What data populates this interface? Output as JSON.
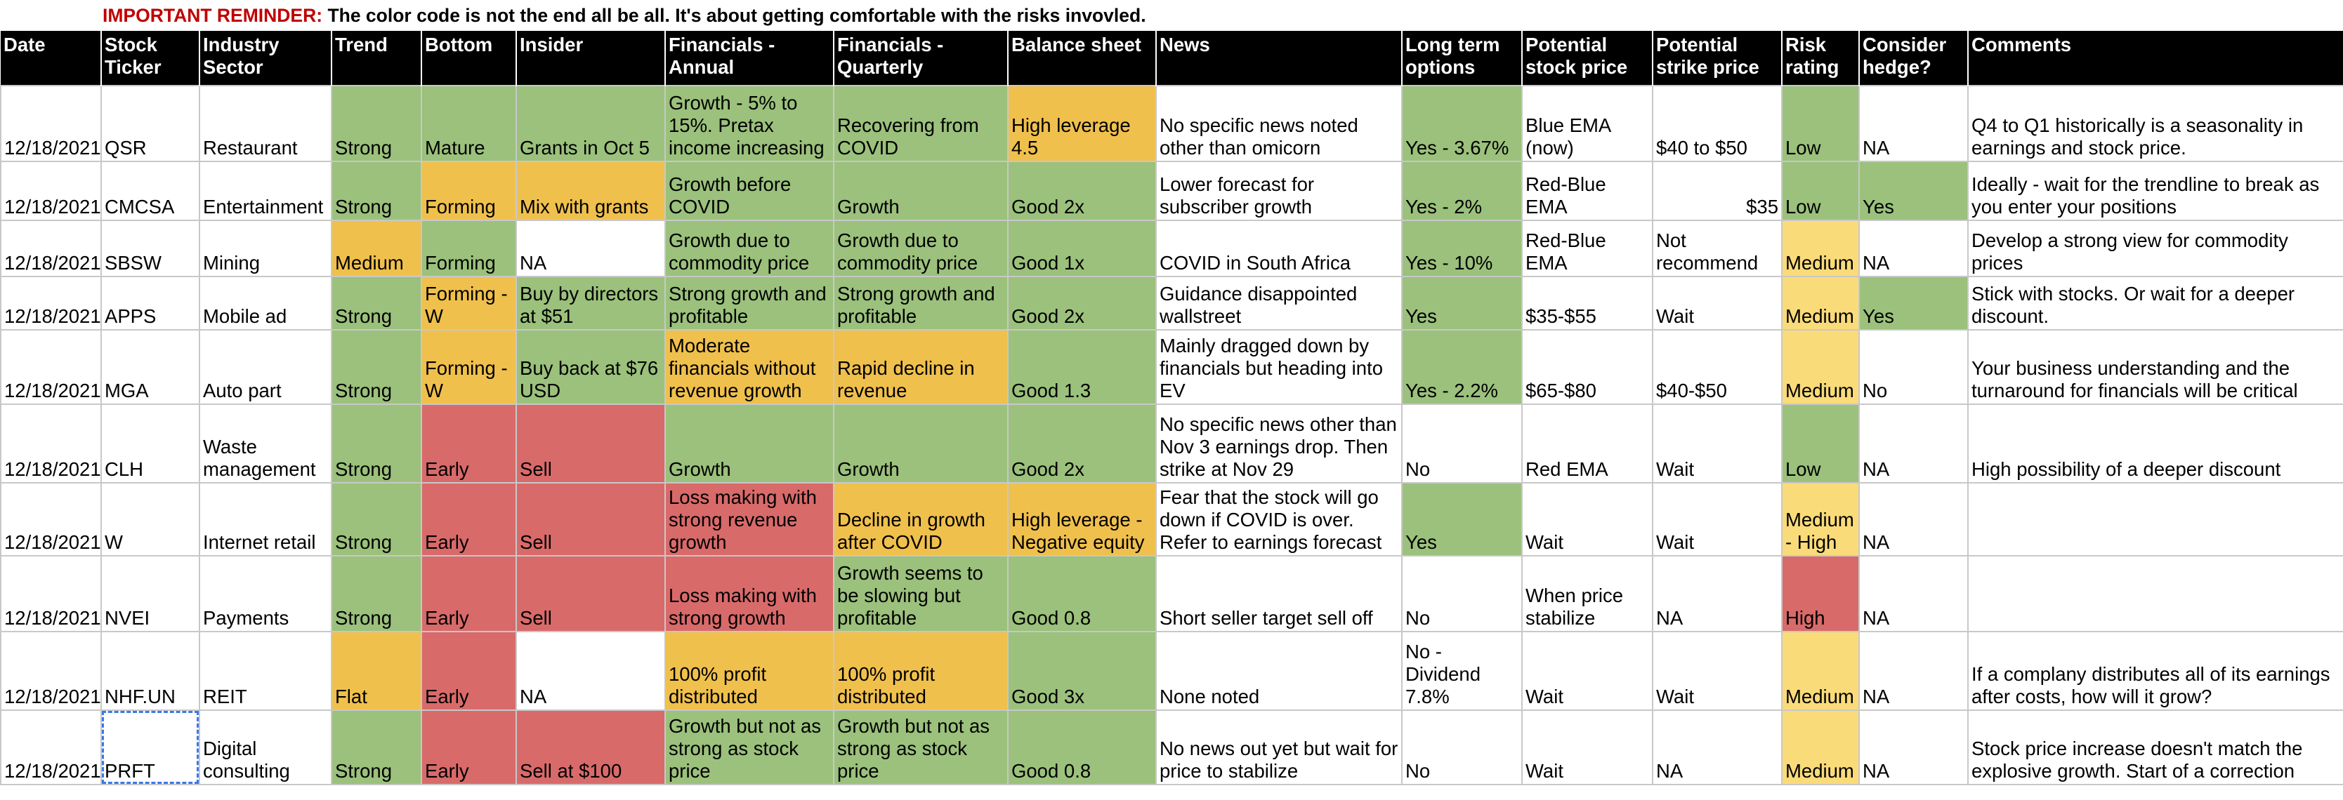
{
  "reminder": {
    "label": "IMPORTANT REMINDER:",
    "text": "The color code is not the end all be all. It's about getting comfortable with the risks invovled."
  },
  "colors": {
    "green": "#9bc17c",
    "yellow": "#f0c04d",
    "red": "#d96a6a",
    "light_yellow": "#fadb7a",
    "header": "#000000",
    "reminder_label": "#c00000"
  },
  "headers": [
    "Date",
    "Stock Ticker",
    "Industry Sector",
    "Trend",
    "Bottom",
    "Insider",
    "Financials - Annual",
    "Financials - Quarterly",
    "Balance sheet",
    "News",
    "Long term options",
    "Potential stock price",
    "Potential strike price",
    "Risk rating",
    "Consider hedge?",
    "Comments"
  ],
  "rows": [
    [
      "12/18/2021",
      "QSR",
      "Restaurant",
      "Strong",
      "Mature",
      "Grants in Oct 5",
      "Growth - 5% to 15%. Pretax income increasing",
      "Recovering from COVID",
      "High leverage 4.5",
      "No specific news noted other than omicorn",
      "Yes - 3.67%",
      "Blue EMA (now)",
      "$40 to $50",
      "Low",
      "NA",
      "Q4 to Q1 historically is a seasonality in earnings and stock price."
    ],
    [
      "12/18/2021",
      "CMCSA",
      "Entertainment",
      "Strong",
      "Forming",
      "Mix with grants",
      "Growth before COVID",
      "Growth",
      "Good 2x",
      "Lower forecast for subscriber growth",
      "Yes - 2%",
      "Red-Blue EMA",
      "$35",
      "Low",
      "Yes",
      "Ideally - wait for the trendline to break as you enter your positions"
    ],
    [
      "12/18/2021",
      "SBSW",
      "Mining",
      "Medium",
      "Forming",
      "NA",
      "Growth due to commodity price",
      "Growth due to commodity price",
      "Good 1x",
      "COVID in South Africa",
      "Yes - 10%",
      "Red-Blue EMA",
      "Not recommend",
      "Medium",
      "NA",
      "Develop a strong view for commodity prices"
    ],
    [
      "12/18/2021",
      "APPS",
      "Mobile ad",
      "Strong",
      "Forming - W",
      "Buy by directors at $51",
      "Strong growth and profitable",
      "Strong growth and profitable",
      "Good 2x",
      "Guidance disappointed wallstreet",
      "Yes",
      "$35-$55",
      "Wait",
      "Medium",
      "Yes",
      "Stick with stocks. Or wait for a deeper discount."
    ],
    [
      "12/18/2021",
      "MGA",
      "Auto part",
      "Strong",
      "Forming - W",
      "Buy back at $76 USD",
      "Moderate financials without revenue growth",
      "Rapid decline in revenue",
      "Good 1.3",
      "Mainly dragged down by financials but heading into EV",
      "Yes - 2.2%",
      "$65-$80",
      "$40-$50",
      "Medium",
      "No",
      "Your business understanding and the turnaround for financials will be critical"
    ],
    [
      "12/18/2021",
      "CLH",
      "Waste management",
      "Strong",
      "Early",
      "Sell",
      "Growth",
      "Growth",
      "Good 2x",
      "No specific news other than Nov 3 earnings drop. Then strike at Nov 29",
      "No",
      "Red EMA",
      "Wait",
      "Low",
      "NA",
      "High possibility of a deeper discount"
    ],
    [
      "12/18/2021",
      "W",
      "Internet retail",
      "Strong",
      "Early",
      "Sell",
      "Loss making with strong revenue growth",
      "Decline in growth after COVID",
      "High leverage - Negative equity",
      "Fear that the stock will go down if COVID is over. Refer to earnings forecast",
      "Yes",
      "Wait",
      "Wait",
      "Medium - High",
      "NA",
      ""
    ],
    [
      "12/18/2021",
      "NVEI",
      "Payments",
      "Strong",
      "Early",
      "Sell",
      "Loss making with strong growth",
      "Growth seems to be slowing but profitable",
      "Good 0.8",
      "Short seller target sell off",
      "No",
      "When price stabilize",
      "NA",
      "High",
      "NA",
      ""
    ],
    [
      "12/18/2021",
      "NHF.UN",
      "REIT",
      "Flat",
      "Early",
      "NA",
      "100% profit distributed",
      "100% profit distributed",
      "Good 3x",
      "None noted",
      "No - Dividend 7.8%",
      "Wait",
      "Wait",
      "Medium",
      "NA",
      "If a complany distributes all of its earnings after costs, how will it grow?"
    ],
    [
      "12/18/2021",
      "PRFT",
      "Digital consulting",
      "Strong",
      "Early",
      "Sell at $100",
      "Growth but not as strong as stock price",
      "Growth but not as strong as stock price",
      "Good 0.8",
      "No news out yet but wait for price to stabilize",
      "No",
      "Wait",
      "NA",
      "Medium",
      "NA",
      "Stock price increase doesn't match the explosive growth. Start of a correction"
    ]
  ]
}
